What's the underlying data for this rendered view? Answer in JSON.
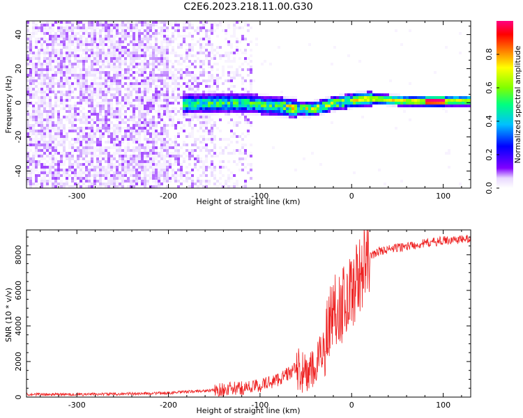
{
  "figure_title": "C2E6.2023.218.11.00.G30",
  "colors": {
    "snr_line": "#ee2222",
    "noise": "#7a22ee",
    "colormap": [
      "#ffffff",
      "#e8d8ff",
      "#8000ff",
      "#0000ff",
      "#00c0ff",
      "#00ff80",
      "#80ff00",
      "#ffff00",
      "#ff8000",
      "#ff0000",
      "#ff0080"
    ]
  },
  "chart_data": [
    {
      "type": "heatmap",
      "title": "",
      "xlabel": "Height of straight line (km)",
      "ylabel": "Frequency (Hz)",
      "xlim": [
        -355,
        130
      ],
      "ylim": [
        -50,
        48
      ],
      "x_ticks": [
        -300,
        -200,
        -100,
        0,
        100
      ],
      "y_ticks": [
        -40,
        -20,
        0,
        20,
        40
      ],
      "colorbar": {
        "label": "Normalized spectral amplitude",
        "range": [
          0,
          1
        ],
        "ticks": [
          0.0,
          0.2,
          0.4,
          0.6,
          0.8
        ]
      },
      "features": {
        "broadband_noise_region_x": [
          -355,
          -110
        ],
        "signal_line_freq_hz": 0,
        "signal_start_x": -185,
        "strong_signal_x": [
          80,
          100
        ]
      }
    },
    {
      "type": "line",
      "title": "",
      "xlabel": "Height of straight line (km)",
      "ylabel": "SNR (10 * v/v)",
      "xlim": [
        -355,
        130
      ],
      "ylim": [
        0,
        9400
      ],
      "x_ticks": [
        -300,
        -200,
        -100,
        0,
        100
      ],
      "y_ticks": [
        0,
        2000,
        4000,
        6000,
        8000
      ],
      "series": [
        {
          "x": [
            -355,
            -300,
            -250,
            -200,
            -180,
            -150,
            -120,
            -100,
            -80,
            -60,
            -50,
            -40,
            -30,
            -20,
            -10,
            0,
            10,
            20,
            30,
            50,
            75,
            100,
            130
          ],
          "y": [
            150,
            150,
            180,
            230,
            300,
            380,
            500,
            650,
            1000,
            1600,
            1300,
            1500,
            3000,
            5000,
            5200,
            6000,
            7000,
            7900,
            8200,
            8400,
            8600,
            8800,
            8900
          ]
        }
      ]
    }
  ]
}
